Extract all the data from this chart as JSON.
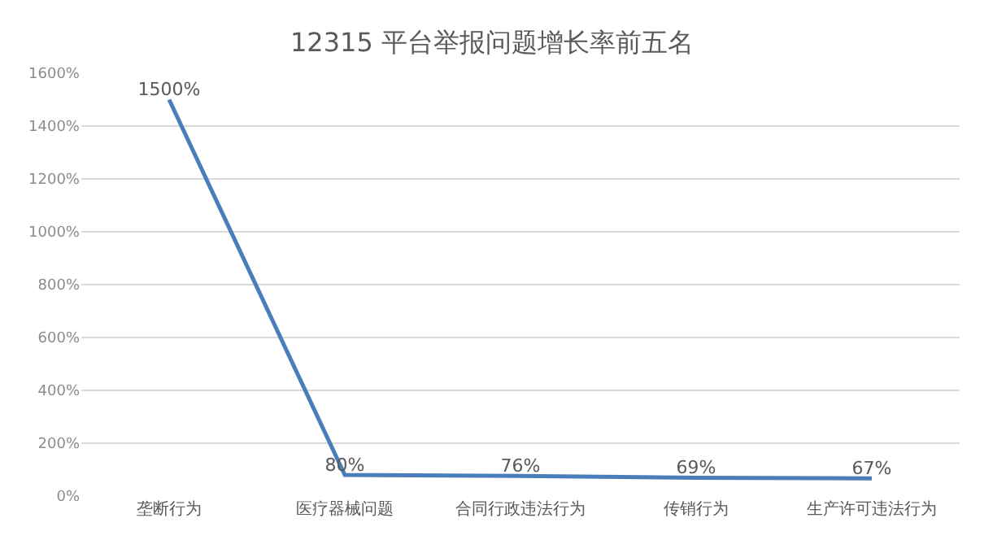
{
  "chart_data": {
    "type": "line",
    "title": "12315 平台举报问题增长率前五名",
    "categories": [
      "垄断行为",
      "医疗器械问题",
      "合同行政违法行为",
      "传销行为",
      "生产许可违法行为"
    ],
    "series": [
      {
        "color": "#4a7ebb",
        "values": [
          1500,
          80,
          76,
          69,
          67
        ]
      }
    ],
    "value_labels": [
      "1500%",
      "80%",
      "76%",
      "69%",
      "67%"
    ],
    "ylim": [
      0,
      1600
    ],
    "yticks": [
      {
        "value": 0,
        "label": "0%"
      },
      {
        "value": 200,
        "label": "200%"
      },
      {
        "value": 400,
        "label": "400%"
      },
      {
        "value": 600,
        "label": "600%"
      },
      {
        "value": 800,
        "label": "800%"
      },
      {
        "value": 1000,
        "label": "1000%"
      },
      {
        "value": 1200,
        "label": "1200%"
      },
      {
        "value": 1400,
        "label": "1400%"
      },
      {
        "value": 1600,
        "label": "1600%"
      }
    ],
    "grid": "y",
    "legend": false,
    "marker": "none",
    "line_style": "solid"
  }
}
